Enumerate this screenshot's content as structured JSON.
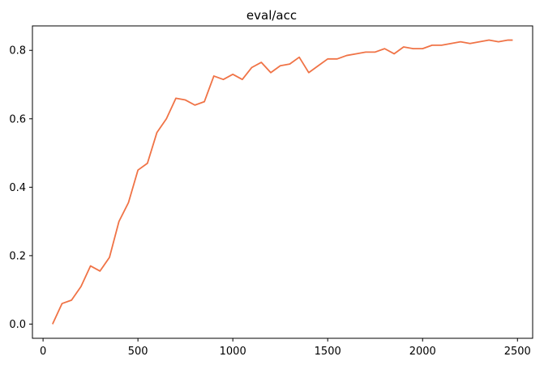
{
  "chart_data": {
    "type": "line",
    "title": "eval/acc",
    "xlabel": "",
    "ylabel": "",
    "xlim": [
      -56,
      2580
    ],
    "ylim": [
      -0.0415,
      0.8715
    ],
    "xticks": [
      0,
      500,
      1000,
      1500,
      2000,
      2500
    ],
    "yticks": [
      0.0,
      0.2,
      0.4,
      0.6,
      0.8
    ],
    "xtick_labels": [
      "0",
      "500",
      "1000",
      "1500",
      "2000",
      "2500"
    ],
    "ytick_labels": [
      "0.0",
      "0.2",
      "0.4",
      "0.6",
      "0.8"
    ],
    "grid": false,
    "legend": null,
    "series": [
      {
        "color": "#f07346",
        "x": [
          50,
          100,
          150,
          200,
          250,
          300,
          350,
          400,
          450,
          500,
          550,
          600,
          650,
          700,
          750,
          800,
          850,
          900,
          950,
          1000,
          1050,
          1100,
          1150,
          1200,
          1250,
          1300,
          1350,
          1400,
          1450,
          1500,
          1550,
          1600,
          1650,
          1700,
          1750,
          1800,
          1850,
          1900,
          1950,
          2000,
          2050,
          2100,
          2150,
          2200,
          2250,
          2300,
          2350,
          2400,
          2450,
          2475
        ],
        "y": [
          0.0,
          0.06,
          0.07,
          0.11,
          0.17,
          0.155,
          0.195,
          0.3,
          0.355,
          0.45,
          0.47,
          0.56,
          0.6,
          0.66,
          0.655,
          0.64,
          0.65,
          0.725,
          0.715,
          0.73,
          0.715,
          0.75,
          0.765,
          0.735,
          0.755,
          0.76,
          0.78,
          0.735,
          0.755,
          0.775,
          0.775,
          0.785,
          0.79,
          0.795,
          0.795,
          0.805,
          0.79,
          0.81,
          0.805,
          0.805,
          0.815,
          0.815,
          0.82,
          0.825,
          0.82,
          0.825,
          0.83,
          0.825,
          0.83,
          0.83
        ]
      }
    ]
  }
}
